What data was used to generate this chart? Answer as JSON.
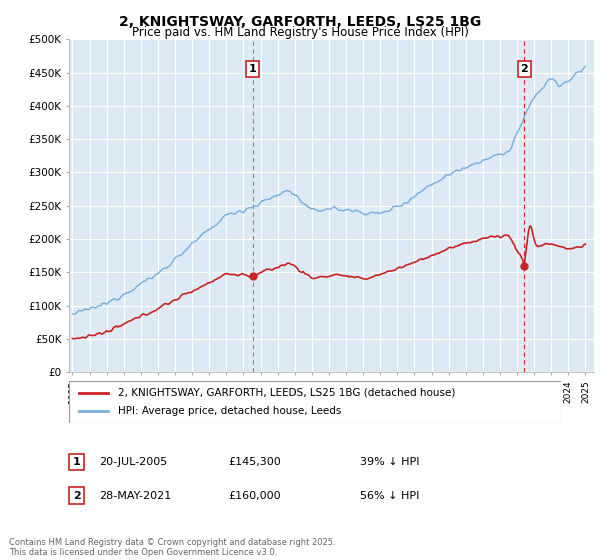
{
  "title": "2, KNIGHTSWAY, GARFORTH, LEEDS, LS25 1BG",
  "subtitle": "Price paid vs. HM Land Registry's House Price Index (HPI)",
  "legend_line1": "2, KNIGHTSWAY, GARFORTH, LEEDS, LS25 1BG (detached house)",
  "legend_line2": "HPI: Average price, detached house, Leeds",
  "annotation1_date": "20-JUL-2005",
  "annotation1_price": "£145,300",
  "annotation1_text": "39% ↓ HPI",
  "annotation2_date": "28-MAY-2021",
  "annotation2_price": "£160,000",
  "annotation2_text": "56% ↓ HPI",
  "sale1_x": 2005.55,
  "sale1_y": 145300,
  "sale2_x": 2021.42,
  "sale2_y": 160000,
  "hpi_color": "#7aabdc",
  "price_color": "#cc2222",
  "sale1_vline_color": "#888888",
  "sale2_vline_color": "#cc2222",
  "annotation_box_color": "#cc2222",
  "bg_color": "#ddeaf5",
  "grid_color": "#ffffff",
  "footer": "Contains HM Land Registry data © Crown copyright and database right 2025.\nThis data is licensed under the Open Government Licence v3.0.",
  "ylim": [
    0,
    500000
  ],
  "xlim": [
    1994.8,
    2025.5
  ]
}
